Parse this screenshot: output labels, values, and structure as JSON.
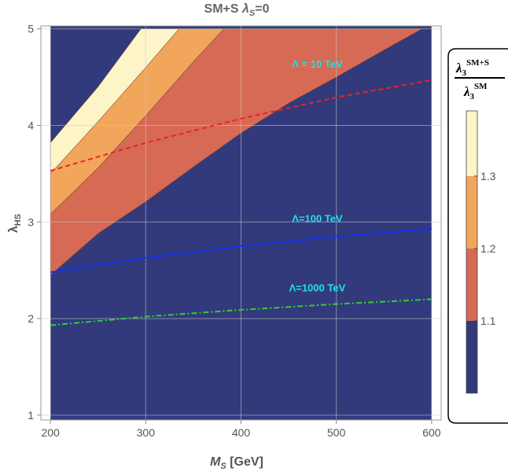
{
  "chart_data": {
    "type": "area",
    "title": "SM+S λS=0",
    "title_parts": {
      "main": "SM+S ",
      "lambda": "λ",
      "sub": "S",
      "rest": "=0"
    },
    "xlabel": "MS [GeV]",
    "xlabel_parts": {
      "main": "M",
      "sub": "S",
      "rest": " [GeV]"
    },
    "ylabel": "λHS",
    "ylabel_parts": {
      "main": "λ",
      "sub": "HS"
    },
    "xlim": [
      190,
      610
    ],
    "ylim": [
      0.95,
      5.03
    ],
    "xticks": [
      200,
      300,
      400,
      500,
      600
    ],
    "xtick_labels": [
      "200",
      "300",
      "400",
      "500",
      "600"
    ],
    "yticks": [
      1,
      2,
      3,
      4,
      5
    ],
    "ytick_labels": [
      "1",
      "2",
      "3",
      "4",
      "5"
    ],
    "grid": true,
    "plot_x_range": [
      200,
      600
    ],
    "background_color": "#323a7c",
    "regions": [
      {
        "name": "1.1–1.2",
        "color": "#d66a54",
        "upper_boundary": [
          [
            200,
            3.08
          ],
          [
            250,
            3.56
          ],
          [
            300,
            4.1
          ],
          [
            350,
            4.66
          ],
          [
            382,
            5.0
          ]
        ],
        "lower_boundary": [
          [
            200,
            2.45
          ],
          [
            250,
            2.88
          ],
          [
            300,
            3.21
          ],
          [
            350,
            3.57
          ],
          [
            400,
            3.92
          ],
          [
            450,
            4.23
          ],
          [
            500,
            4.5
          ],
          [
            550,
            4.78
          ],
          [
            590,
            5.0
          ]
        ]
      },
      {
        "name": "1.2–1.3",
        "color": "#f2a65c",
        "upper_boundary": [
          [
            200,
            3.5
          ],
          [
            250,
            4.04
          ],
          [
            300,
            4.6
          ],
          [
            335,
            5.0
          ]
        ],
        "lower_boundary": [
          [
            200,
            3.08
          ],
          [
            250,
            3.56
          ],
          [
            300,
            4.1
          ],
          [
            350,
            4.66
          ],
          [
            382,
            5.0
          ]
        ]
      },
      {
        "name": ">1.3",
        "color": "#fdf4c8",
        "upper_boundary": [
          [
            200,
            3.82
          ],
          [
            250,
            4.4
          ],
          [
            295,
            5.0
          ]
        ],
        "lower_boundary": [
          [
            200,
            3.5
          ],
          [
            250,
            4.04
          ],
          [
            300,
            4.6
          ],
          [
            335,
            5.0
          ]
        ]
      }
    ],
    "series": [
      {
        "name": "Λ = 10 TeV",
        "color": "#ee2222",
        "dash": "dashed",
        "x": [
          200,
          300,
          400,
          500,
          600
        ],
        "y": [
          3.53,
          3.82,
          4.07,
          4.29,
          4.47
        ]
      },
      {
        "name": "Λ=100 TeV",
        "color": "#1530ee",
        "dash": "solid",
        "x": [
          200,
          300,
          400,
          500,
          600
        ],
        "y": [
          2.48,
          2.63,
          2.75,
          2.85,
          2.93
        ]
      },
      {
        "name": "Λ=1000 TeV",
        "color": "#33cc33",
        "dash": "dashdot",
        "x": [
          200,
          300,
          400,
          500,
          600
        ],
        "y": [
          1.93,
          2.02,
          2.09,
          2.15,
          2.2
        ]
      }
    ],
    "annotations": [
      {
        "text": "Λ = 10 TeV",
        "x": 480,
        "y": 4.6
      },
      {
        "text": "Λ=100 TeV",
        "x": 480,
        "y": 3.0
      },
      {
        "text": "Λ=1000 TeV",
        "x": 480,
        "y": 2.28
      }
    ],
    "legend": {
      "placement": "right",
      "title_num_main": "λ",
      "title_num_sub": "3",
      "title_num_sup": "SM+S",
      "title_den_main": "λ",
      "title_den_sub": "3",
      "title_den_sup": "SM",
      "colorbar_range": [
        1.0,
        1.39
      ],
      "bands": [
        {
          "from": 1.0,
          "to": 1.1,
          "color": "#323a7c"
        },
        {
          "from": 1.1,
          "to": 1.2,
          "color": "#d66a54"
        },
        {
          "from": 1.2,
          "to": 1.3,
          "color": "#f2a65c"
        },
        {
          "from": 1.3,
          "to": 1.39,
          "color": "#fdf4c8"
        }
      ],
      "ticks": [
        1.1,
        1.2,
        1.3
      ],
      "tick_labels": [
        "1.1",
        "1.2",
        "1.3"
      ]
    }
  }
}
